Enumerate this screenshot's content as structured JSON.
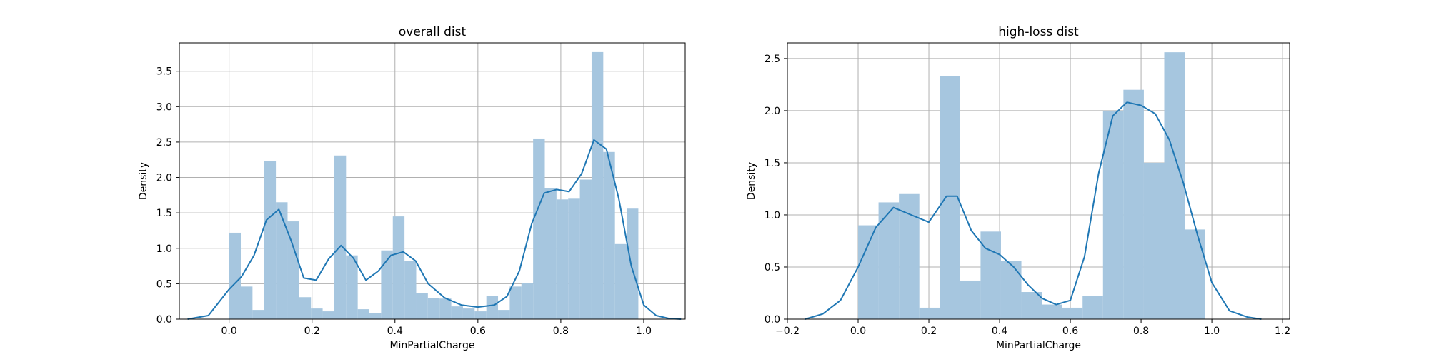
{
  "chart_data": [
    {
      "type": "bar",
      "title": "overall dist",
      "xlabel": "MinPartialCharge",
      "ylabel": "Density",
      "xlim": [
        -0.12,
        1.1
      ],
      "ylim": [
        0,
        3.9
      ],
      "xticks": [
        0.0,
        0.2,
        0.4,
        0.6,
        0.8,
        1.0
      ],
      "xtick_labels": [
        "0.0",
        "0.2",
        "0.4",
        "0.6",
        "0.8",
        "1.0"
      ],
      "yticks": [
        0.0,
        0.5,
        1.0,
        1.5,
        2.0,
        2.5,
        3.0,
        3.5
      ],
      "ytick_labels": [
        "0.0",
        "0.5",
        "1.0",
        "1.5",
        "2.0",
        "2.5",
        "3.0",
        "3.5"
      ],
      "grid": true,
      "bin_edges": [
        0.0,
        0.0282,
        0.0564,
        0.0846,
        0.1128,
        0.141,
        0.1692,
        0.1974,
        0.2256,
        0.2538,
        0.282,
        0.3102,
        0.3384,
        0.3666,
        0.3948,
        0.423,
        0.4512,
        0.4794,
        0.5076,
        0.5358,
        0.564,
        0.5922,
        0.6204,
        0.6486,
        0.6768,
        0.705,
        0.7332,
        0.7614,
        0.7896,
        0.8178,
        0.846,
        0.8742,
        0.9024,
        0.9306,
        0.9588,
        0.987
      ],
      "densities": [
        1.22,
        0.46,
        0.13,
        2.23,
        1.65,
        1.38,
        0.31,
        0.15,
        0.11,
        2.31,
        0.9,
        0.14,
        0.09,
        0.97,
        1.45,
        0.82,
        0.37,
        0.3,
        0.29,
        0.18,
        0.15,
        0.11,
        0.33,
        0.13,
        0.46,
        0.51,
        2.55,
        1.85,
        1.69,
        1.7,
        1.97,
        3.77,
        2.36,
        1.06,
        1.56
      ],
      "kde_x": [
        -0.1,
        -0.05,
        0.0,
        0.03,
        0.06,
        0.09,
        0.12,
        0.15,
        0.18,
        0.21,
        0.24,
        0.27,
        0.3,
        0.33,
        0.36,
        0.39,
        0.42,
        0.45,
        0.48,
        0.52,
        0.56,
        0.6,
        0.64,
        0.67,
        0.7,
        0.73,
        0.76,
        0.79,
        0.82,
        0.85,
        0.88,
        0.91,
        0.94,
        0.97,
        1.0,
        1.03,
        1.06,
        1.09
      ],
      "kde_y": [
        0.0,
        0.05,
        0.42,
        0.6,
        0.9,
        1.4,
        1.55,
        1.1,
        0.58,
        0.55,
        0.85,
        1.04,
        0.86,
        0.55,
        0.68,
        0.9,
        0.95,
        0.82,
        0.5,
        0.3,
        0.2,
        0.17,
        0.2,
        0.32,
        0.68,
        1.35,
        1.78,
        1.83,
        1.8,
        2.05,
        2.53,
        2.4,
        1.7,
        0.75,
        0.2,
        0.05,
        0.01,
        0.0
      ],
      "bar_color": "#a6c6df",
      "kde_color": "#1f77b4"
    },
    {
      "type": "bar",
      "title": "high-loss dist",
      "xlabel": "MinPartialCharge",
      "ylabel": "Density",
      "xlim": [
        -0.2,
        1.22
      ],
      "ylim": [
        0,
        2.65
      ],
      "xticks": [
        -0.2,
        0.0,
        0.2,
        0.4,
        0.6,
        0.8,
        1.0,
        1.2
      ],
      "xtick_labels": [
        "−0.2",
        "0.0",
        "0.2",
        "0.4",
        "0.6",
        "0.8",
        "1.0",
        "1.2"
      ],
      "yticks": [
        0.0,
        0.5,
        1.0,
        1.5,
        2.0,
        2.5
      ],
      "ytick_labels": [
        "0.0",
        "0.5",
        "1.0",
        "1.5",
        "2.0",
        "2.5"
      ],
      "grid": true,
      "bin_edges": [
        0.0,
        0.0577,
        0.1154,
        0.1731,
        0.2308,
        0.2885,
        0.3462,
        0.4039,
        0.4616,
        0.5193,
        0.577,
        0.6347,
        0.6924,
        0.7501,
        0.8078,
        0.8655,
        0.9232,
        0.9809
      ],
      "densities": [
        0.9,
        1.12,
        1.2,
        0.11,
        2.33,
        0.37,
        0.84,
        0.56,
        0.26,
        0.14,
        0.11,
        0.22,
        2.0,
        2.2,
        1.5,
        2.56,
        0.86
      ],
      "kde_x": [
        -0.15,
        -0.1,
        -0.05,
        0.0,
        0.05,
        0.1,
        0.15,
        0.2,
        0.25,
        0.28,
        0.32,
        0.36,
        0.4,
        0.44,
        0.48,
        0.52,
        0.56,
        0.6,
        0.64,
        0.68,
        0.72,
        0.76,
        0.8,
        0.84,
        0.88,
        0.92,
        0.96,
        1.0,
        1.05,
        1.1,
        1.14
      ],
      "kde_y": [
        0.0,
        0.05,
        0.18,
        0.5,
        0.88,
        1.07,
        1.0,
        0.93,
        1.18,
        1.18,
        0.85,
        0.68,
        0.62,
        0.5,
        0.33,
        0.2,
        0.14,
        0.18,
        0.6,
        1.4,
        1.95,
        2.08,
        2.05,
        1.97,
        1.72,
        1.3,
        0.8,
        0.35,
        0.08,
        0.02,
        0.0
      ],
      "bar_color": "#a6c6df",
      "kde_color": "#1f77b4"
    }
  ]
}
